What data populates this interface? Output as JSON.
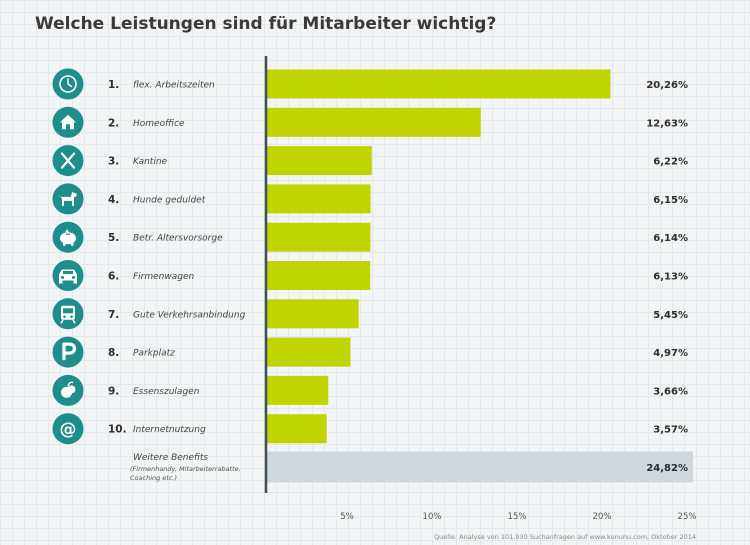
{
  "chart_data": {
    "type": "bar",
    "orientation": "horizontal",
    "title": "Welche Leistungen sind für Mitarbeiter wichtig?",
    "categories": [
      {
        "rank": "1.",
        "label": "flex. Arbeitszeiten",
        "value_label": "20,26%",
        "icon": "clock-icon"
      },
      {
        "rank": "2.",
        "label": "Homeoffice",
        "value_label": "12,63%",
        "icon": "house-icon"
      },
      {
        "rank": "3.",
        "label": "Kantine",
        "value_label": "6,22%",
        "icon": "cutlery-icon"
      },
      {
        "rank": "4.",
        "label": "Hunde geduldet",
        "value_label": "6,15%",
        "icon": "dog-icon"
      },
      {
        "rank": "5.",
        "label": "Betr. Altersvorsorge",
        "value_label": "6,14%",
        "icon": "piggy-bank-icon"
      },
      {
        "rank": "6.",
        "label": "Firmenwagen",
        "value_label": "6,13%",
        "icon": "car-icon"
      },
      {
        "rank": "7.",
        "label": "Gute Verkehrsanbindung",
        "value_label": "5,45%",
        "icon": "bus-icon"
      },
      {
        "rank": "8.",
        "label": "Parkplatz",
        "value_label": "4,97%",
        "icon": "parking-icon"
      },
      {
        "rank": "9.",
        "label": "Essenszulagen",
        "value_label": "3,66%",
        "icon": "fruit-icon"
      },
      {
        "rank": "10.",
        "label": "Internetnutzung",
        "value_label": "3,57%",
        "icon": "at-sign-icon"
      }
    ],
    "values": [
      20.26,
      12.63,
      6.22,
      6.15,
      6.14,
      6.13,
      5.45,
      4.97,
      3.66,
      3.57
    ],
    "other": {
      "label": "Weitere Benefits",
      "sublabel": [
        "(Firmenhandy, Mitarbeiterrabatte,",
        "Coaching etc.)"
      ],
      "value": 24.82,
      "value_label": "24,82%"
    },
    "xlim": [
      0,
      25
    ],
    "ticks": [
      5,
      10,
      15,
      20,
      25
    ],
    "tick_labels": [
      "5%",
      "10%",
      "15%",
      "20%",
      "25%"
    ],
    "source": "Quelle: Analyse von 101.930 Suchanfragen auf www.kununu.com, Oktober 2014",
    "colors": {
      "bar": "#c0d400",
      "other_bar": "#cfd7dd",
      "icon_bg": "#1e8e8d",
      "axis": "#3e4f5a"
    }
  }
}
